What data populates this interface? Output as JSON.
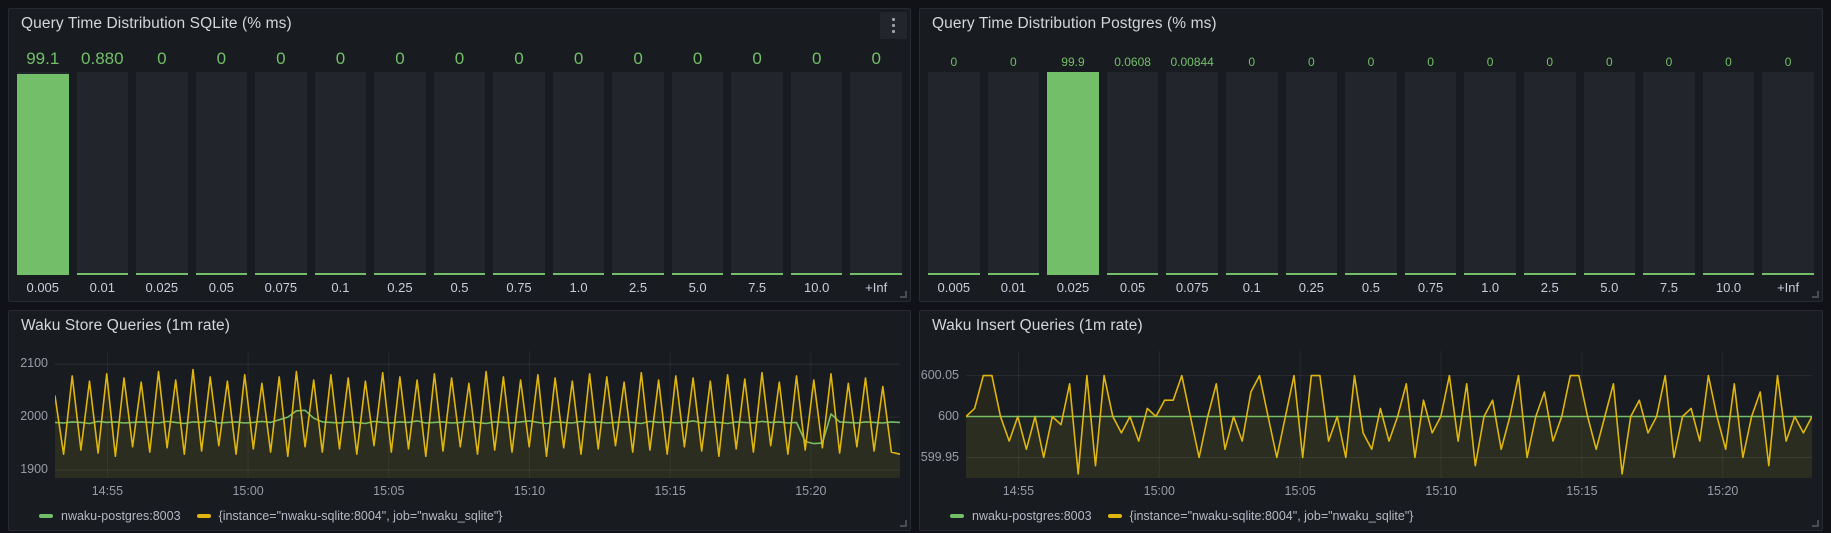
{
  "colors": {
    "green": "#73BF69",
    "yellow": "#DFB50F",
    "panel_bg": "#181b1f",
    "page_bg": "#111217",
    "bar_track": "#22252b"
  },
  "panel_menu": {
    "icon": "kebab-vertical"
  },
  "chart_data": [
    {
      "type": "bar",
      "title": "Query Time Distribution SQLite (% ms)",
      "color": "#73BF69",
      "ylim": [
        0,
        100
      ],
      "categories": [
        "0.005",
        "0.01",
        "0.025",
        "0.05",
        "0.075",
        "0.1",
        "0.25",
        "0.5",
        "0.75",
        "1.0",
        "2.5",
        "5.0",
        "7.5",
        "10.0",
        "+Inf"
      ],
      "values": [
        99.1,
        0.88,
        0,
        0,
        0,
        0,
        0,
        0,
        0,
        0,
        0,
        0,
        0,
        0,
        0
      ],
      "value_labels": [
        "99.1",
        "0.880",
        "0",
        "0",
        "0",
        "0",
        "0",
        "0",
        "0",
        "0",
        "0",
        "0",
        "0",
        "0",
        "0"
      ]
    },
    {
      "type": "bar",
      "title": "Query Time Distribution Postgres (% ms)",
      "color": "#73BF69",
      "ylim": [
        0,
        100
      ],
      "categories": [
        "0.005",
        "0.01",
        "0.025",
        "0.05",
        "0.075",
        "0.1",
        "0.25",
        "0.5",
        "0.75",
        "1.0",
        "2.5",
        "5.0",
        "7.5",
        "10.0",
        "+Inf"
      ],
      "values": [
        0,
        0,
        99.9,
        0.0608,
        0.00844,
        0,
        0,
        0,
        0,
        0,
        0,
        0,
        0,
        0,
        0
      ],
      "value_labels": [
        "0",
        "0",
        "99.9",
        "0.0608",
        "0.00844",
        "0",
        "0",
        "0",
        "0",
        "0",
        "0",
        "0",
        "0",
        "0",
        "0"
      ]
    },
    {
      "type": "line",
      "title": "Waku Store Queries (1m rate)",
      "ylim": [
        1885,
        2125
      ],
      "yticks": [
        {
          "v": 2100,
          "label": "2100"
        },
        {
          "v": 2000,
          "label": "2000"
        },
        {
          "v": 1900,
          "label": "1900"
        }
      ],
      "xticks": [
        {
          "pos": 0.062,
          "label": "14:55"
        },
        {
          "pos": 0.2285,
          "label": "15:00"
        },
        {
          "pos": 0.395,
          "label": "15:05"
        },
        {
          "pos": 0.5615,
          "label": "15:10"
        },
        {
          "pos": 0.728,
          "label": "15:15"
        },
        {
          "pos": 0.8945,
          "label": "15:20"
        }
      ],
      "series": [
        {
          "name": "nwaku-postgres:8003",
          "color": "#73BF69",
          "fill_opacity": 0.05,
          "values": [
            1990,
            1989,
            1991,
            1990,
            1988,
            1992,
            1990,
            1991,
            1989,
            1990,
            1991,
            1990,
            1989,
            1992,
            1990,
            1988,
            1991,
            1990,
            1993,
            1989,
            1990,
            1991,
            1989,
            1990,
            1992,
            1990,
            1995,
            2000,
            2012,
            2013,
            1998,
            1991,
            1990,
            1989,
            1991,
            1990,
            1988,
            1992,
            1990,
            1989,
            1991,
            1990,
            1993,
            1989,
            1990,
            1991,
            1989,
            1990,
            1992,
            1990,
            1988,
            1991,
            1990,
            1989,
            1991,
            1993,
            1990,
            1988,
            1991,
            1990,
            1989,
            1992,
            1990,
            1991,
            1989,
            1990,
            1991,
            1990,
            1988,
            1992,
            1990,
            1991,
            1989,
            1990,
            1993,
            1989,
            1991,
            1990,
            1988,
            1991,
            1990,
            1989,
            1992,
            1990,
            1991,
            1989,
            1990,
            1954,
            1950,
            1951,
            2006,
            1991,
            1990,
            1989,
            1991,
            1990,
            1989,
            1991,
            1990
          ]
        },
        {
          "name": "{instance=\"nwaku-sqlite:8004\", job=\"nwaku_sqlite\"}",
          "color": "#DFB50F",
          "fill_opacity": 0.07,
          "values": [
            2040,
            1930,
            2078,
            1938,
            2068,
            1932,
            2082,
            1926,
            2074,
            1944,
            2066,
            1934,
            2086,
            1942,
            2070,
            1930,
            2090,
            1936,
            2076,
            1946,
            2068,
            1930,
            2080,
            1940,
            2064,
            1934,
            2076,
            1926,
            2086,
            1944,
            2070,
            1934,
            2080,
            1940,
            2074,
            1930,
            2068,
            1946,
            2084,
            1934,
            2076,
            1940,
            2070,
            1926,
            2082,
            1936,
            2074,
            1944,
            2064,
            1930,
            2086,
            1938,
            2076,
            1934,
            2070,
            1944,
            2080,
            1926,
            2074,
            1942,
            2068,
            1930,
            2082,
            1940,
            2076,
            1946,
            2066,
            1934,
            2084,
            1938,
            2070,
            1930,
            2078,
            1944,
            2074,
            1936,
            2068,
            1926,
            2080,
            1940,
            2072,
            1934,
            2084,
            1946,
            2066,
            1930,
            2078,
            1938,
            2070,
            1942,
            2082,
            1932,
            2064,
            1944,
            2074,
            1936,
            2058,
            1934,
            1930
          ]
        }
      ]
    },
    {
      "type": "line",
      "title": "Waku Insert Queries (1m rate)",
      "ylim": [
        599.925,
        600.08
      ],
      "yticks": [
        {
          "v": 600.05,
          "label": "600.05"
        },
        {
          "v": 600,
          "label": "600"
        },
        {
          "v": 599.95,
          "label": "599.95"
        }
      ],
      "xticks": [
        {
          "pos": 0.062,
          "label": "14:55"
        },
        {
          "pos": 0.2285,
          "label": "15:00"
        },
        {
          "pos": 0.395,
          "label": "15:05"
        },
        {
          "pos": 0.5615,
          "label": "15:10"
        },
        {
          "pos": 0.728,
          "label": "15:15"
        },
        {
          "pos": 0.8945,
          "label": "15:20"
        }
      ],
      "series": [
        {
          "name": "nwaku-postgres:8003",
          "color": "#73BF69",
          "fill_opacity": 0.05,
          "const": 600,
          "points": 99
        },
        {
          "name": "{instance=\"nwaku-sqlite:8004\", job=\"nwaku_sqlite\"}",
          "color": "#DFB50F",
          "fill_opacity": 0.07,
          "values": [
            600,
            600.01,
            600.05,
            600.05,
            600,
            599.97,
            600,
            599.96,
            600,
            599.95,
            600,
            599.99,
            600.04,
            599.93,
            600.05,
            599.94,
            600.05,
            600,
            599.98,
            600,
            599.97,
            600.01,
            600,
            600.02,
            600.02,
            600.05,
            600,
            599.95,
            600,
            600.04,
            599.96,
            600,
            599.97,
            600.03,
            600.05,
            600,
            599.95,
            600,
            600.05,
            599.95,
            600.05,
            600.05,
            599.97,
            600,
            599.95,
            600.05,
            599.98,
            599.96,
            600.01,
            599.97,
            600,
            600.04,
            599.95,
            600.02,
            599.98,
            600,
            600.05,
            599.97,
            600.04,
            599.94,
            600,
            600.02,
            599.96,
            600,
            600.05,
            599.95,
            600,
            600.03,
            599.97,
            600,
            600.05,
            600.05,
            600,
            599.96,
            600,
            600.04,
            599.93,
            600,
            600.02,
            599.98,
            600,
            600.05,
            599.95,
            600,
            600.01,
            599.97,
            600.05,
            600,
            599.96,
            600.04,
            599.95,
            600,
            600.03,
            599.94,
            600.05,
            599.97,
            600,
            599.98,
            600
          ]
        }
      ]
    }
  ]
}
